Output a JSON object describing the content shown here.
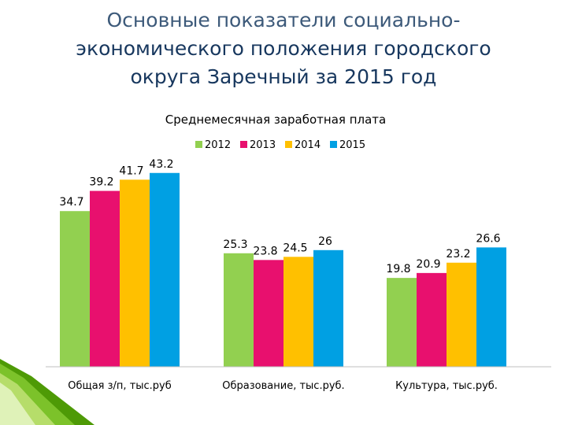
{
  "slide": {
    "title_lines": [
      "Основные показатели социально-",
      "экономического положения городского",
      "округа Заречный за 2015 год"
    ]
  },
  "chart_data": {
    "type": "bar",
    "title": "Среднемесячная заработная плата",
    "categories": [
      "Общая з/п, тыс.руб",
      "Образование, тыс.руб.",
      "Культура, тыс.руб."
    ],
    "series": [
      {
        "name": "2012",
        "color": "#92d050",
        "values": [
          34.7,
          25.3,
          19.8
        ]
      },
      {
        "name": "2013",
        "color": "#e8106e",
        "values": [
          39.2,
          23.8,
          20.9
        ]
      },
      {
        "name": "2014",
        "color": "#ffc000",
        "values": [
          41.7,
          24.5,
          23.2
        ]
      },
      {
        "name": "2015",
        "color": "#00a0e3",
        "values": [
          43.2,
          26,
          26.6
        ]
      }
    ],
    "data_labels": [
      [
        "34.7",
        "25.3",
        "19.8"
      ],
      [
        "39.2",
        "23.8",
        "20.9"
      ],
      [
        "41.7",
        "24.5",
        "23.2"
      ],
      [
        "43.2",
        "26",
        "26.6"
      ]
    ],
    "ylim": [
      0,
      50
    ],
    "legend": "top",
    "grid": false
  }
}
